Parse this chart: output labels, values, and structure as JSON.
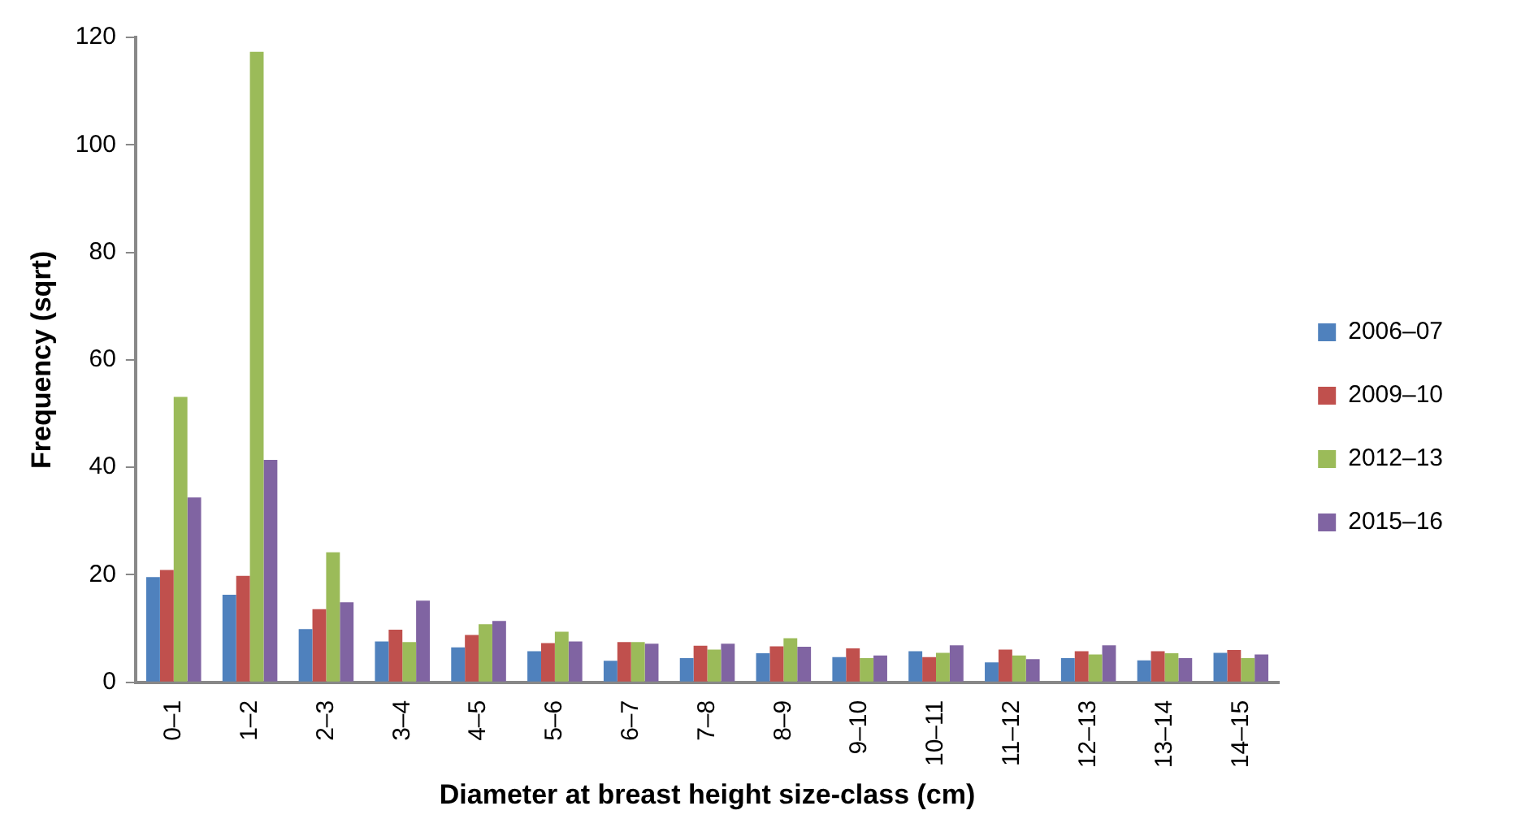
{
  "chart_data": {
    "type": "bar",
    "xlabel": "Diameter at breast height size-class (cm)",
    "ylabel": "Frequency (sqrt)",
    "categories": [
      "0–1",
      "1–2",
      "2–3",
      "3–4",
      "4–5",
      "5–6",
      "6–7",
      "7–8",
      "8–9",
      "9–10",
      "10–11",
      "11–12",
      "12–13",
      "13–14",
      "14–15"
    ],
    "series": [
      {
        "name": "2006–07",
        "color": "#4f81bd",
        "values": [
          19.6,
          16.3,
          9.9,
          7.6,
          6.5,
          5.8,
          4.0,
          4.5,
          5.4,
          4.7,
          5.8,
          3.7,
          4.5,
          4.1,
          5.5
        ]
      },
      {
        "name": "2009–10",
        "color": "#c0504d",
        "values": [
          20.9,
          19.8,
          13.6,
          9.8,
          8.8,
          7.3,
          7.5,
          6.8,
          6.7,
          6.3,
          4.7,
          6.1,
          5.8,
          5.8,
          6.0
        ]
      },
      {
        "name": "2012–13",
        "color": "#9bbb59",
        "values": [
          53.1,
          117.3,
          24.2,
          7.5,
          10.8,
          9.4,
          7.5,
          6.1,
          8.2,
          4.5,
          5.5,
          5.0,
          5.2,
          5.4,
          4.5
        ]
      },
      {
        "name": "2015–16",
        "color": "#8064a2",
        "values": [
          34.4,
          41.4,
          14.9,
          15.2,
          11.4,
          7.6,
          7.2,
          7.2,
          6.6,
          5.0,
          6.9,
          4.3,
          6.9,
          4.5,
          5.2
        ]
      }
    ],
    "ylim": [
      0,
      120
    ],
    "yticks": [
      0,
      20,
      40,
      60,
      80,
      100,
      120
    ],
    "grid": false,
    "legend": "right"
  }
}
